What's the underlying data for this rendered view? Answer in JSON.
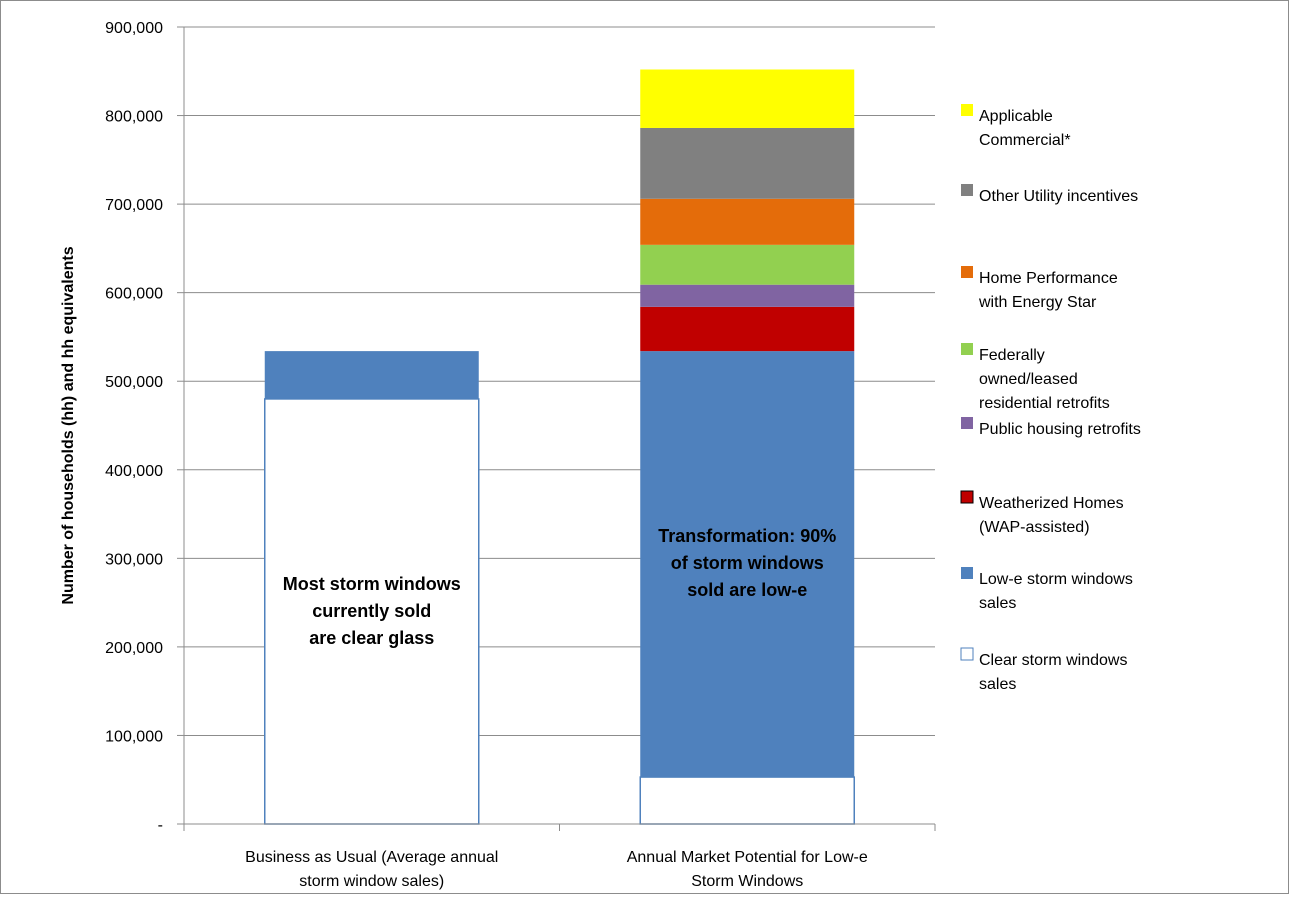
{
  "chart_data": {
    "type": "bar",
    "stacked": true,
    "categories": [
      [
        "Business as Usual (Average annual",
        "storm window sales)"
      ],
      [
        "Annual Market Potential for Low-e",
        "Storm Windows"
      ]
    ],
    "ylabel": "Number of households (hh) and hh equivalents",
    "ylim": [
      0,
      900000
    ],
    "yticks": [
      0,
      100000,
      200000,
      300000,
      400000,
      500000,
      600000,
      700000,
      800000,
      900000
    ],
    "ytick_labels": [
      "-",
      "100,000",
      "200,000",
      "300,000",
      "400,000",
      "500,000",
      "600,000",
      "700,000",
      "800,000",
      "900,000"
    ],
    "grid": true,
    "legend_position": "right",
    "series": [
      {
        "name": [
          "Clear storm windows",
          "sales"
        ],
        "color": "#ffffff",
        "border": "#4f81bd",
        "values": [
          480000,
          53000
        ]
      },
      {
        "name": [
          "Low-e storm windows",
          "sales"
        ],
        "color": "#4f81bd",
        "values": [
          54000,
          481000
        ]
      },
      {
        "name": [
          "Weatherized Homes",
          "(WAP-assisted)"
        ],
        "color": "#c00000",
        "border": "#000000",
        "values": [
          0,
          50000
        ]
      },
      {
        "name": [
          "Public housing retrofits"
        ],
        "color": "#8064a2",
        "values": [
          0,
          25000
        ]
      },
      {
        "name": [
          "Federally",
          "owned/leased",
          "residential retrofits"
        ],
        "color": "#92d050",
        "values": [
          0,
          45000
        ]
      },
      {
        "name": [
          "Home Performance",
          "with Energy Star"
        ],
        "color": "#e46c0a",
        "values": [
          0,
          52000
        ]
      },
      {
        "name": [
          "Other Utility incentives"
        ],
        "color": "#808080",
        "values": [
          0,
          80000
        ]
      },
      {
        "name": [
          "Applicable",
          "Commercial*"
        ],
        "color": "#ffff00",
        "values": [
          0,
          66000
        ]
      }
    ],
    "annotations": [
      {
        "bar": 0,
        "lines": [
          "Most storm windows",
          "currently sold",
          "are clear glass"
        ]
      },
      {
        "bar": 1,
        "lines": [
          "Transformation: 90%",
          "of storm windows",
          "sold are low-e"
        ]
      }
    ]
  }
}
